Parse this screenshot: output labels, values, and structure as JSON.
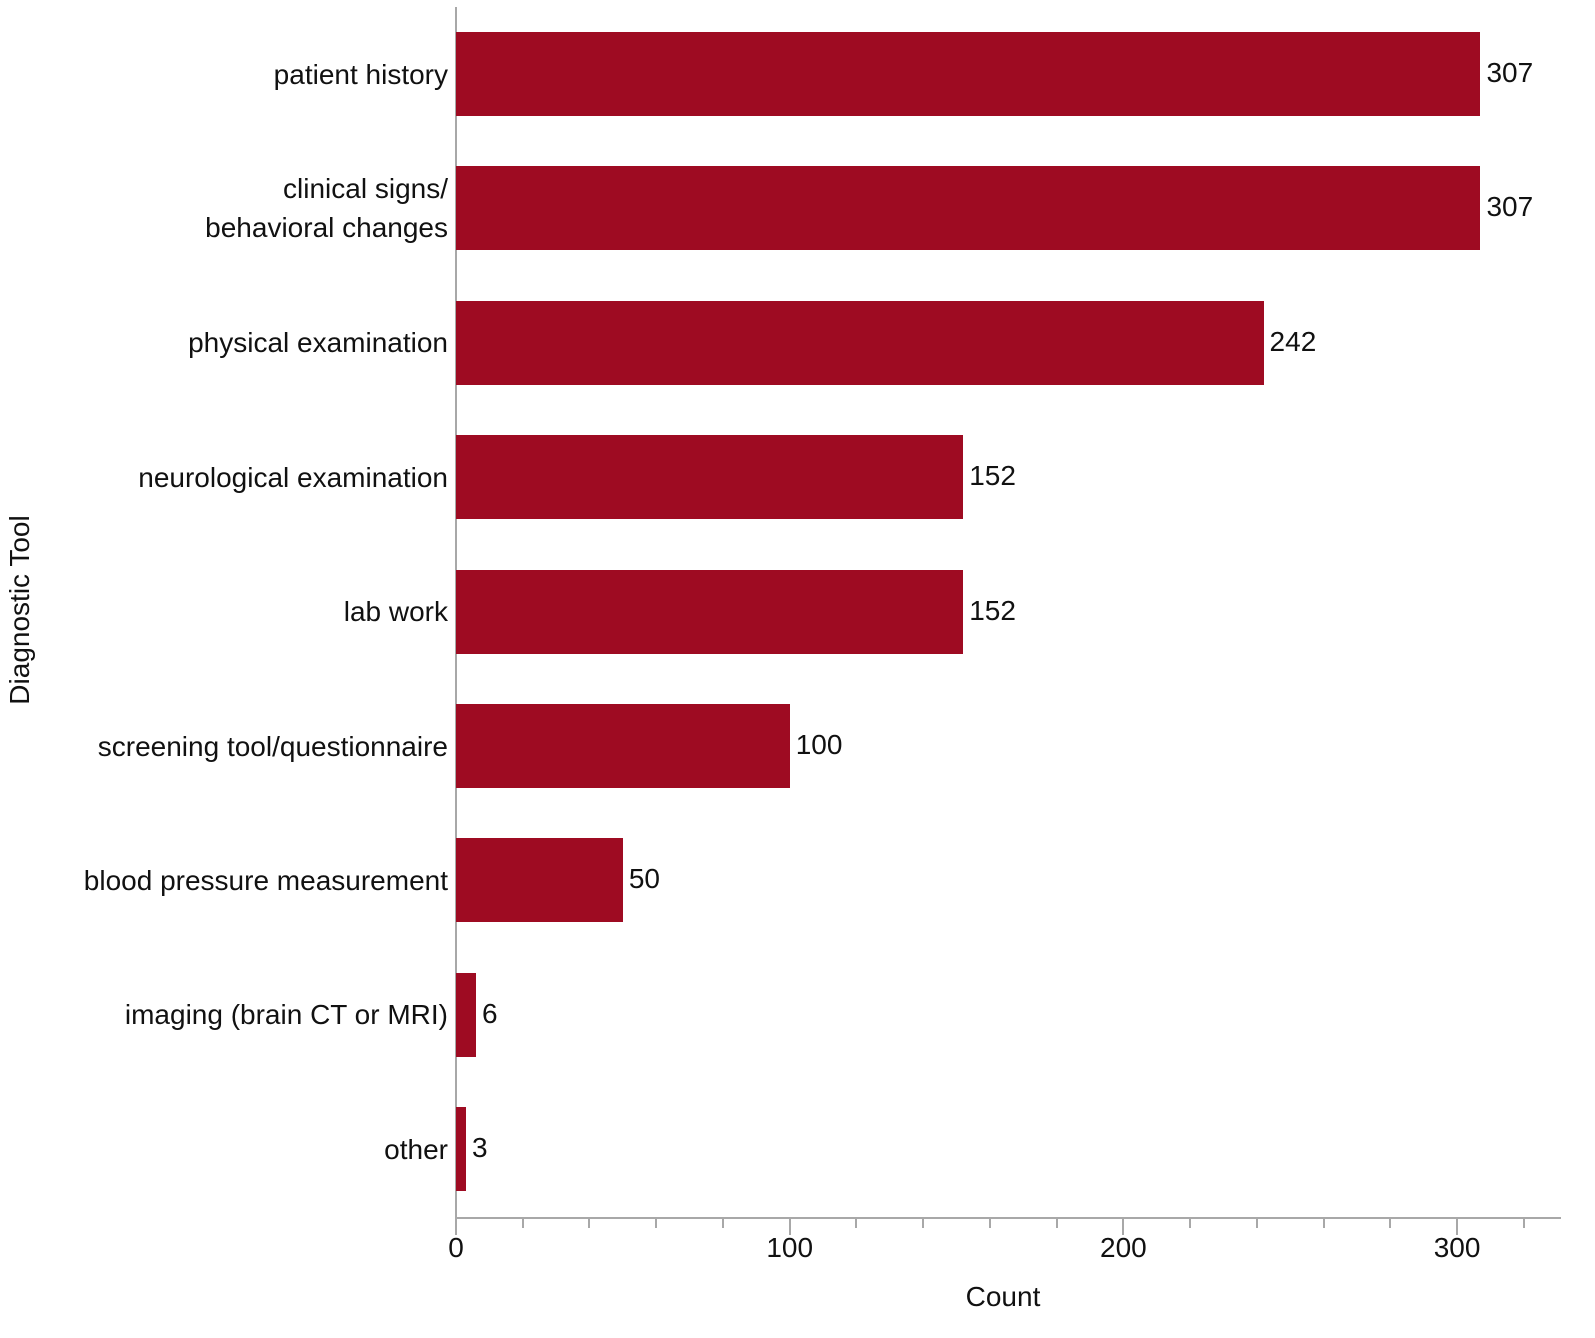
{
  "chart_data": {
    "type": "bar",
    "orientation": "horizontal",
    "title": "",
    "xlabel": "Count",
    "ylabel": "Diagnostic Tool",
    "categories": [
      "patient history",
      "clinical signs/\nbehavioral changes",
      "physical examination",
      "neurological examination",
      "lab work",
      "screening tool/questionnaire",
      "blood pressure measurement",
      "imaging (brain CT or MRI)",
      "other"
    ],
    "values": [
      307,
      307,
      242,
      152,
      152,
      100,
      50,
      6,
      3
    ],
    "data_labels": [
      "307",
      "307",
      "242",
      "152",
      "152",
      "100",
      "50",
      "6",
      "3"
    ],
    "xlim": [
      0,
      330
    ],
    "x_ticks_major": [
      0,
      100,
      200,
      300
    ],
    "x_tick_labels": [
      "0",
      "100",
      "200",
      "300"
    ],
    "x_ticks_minor_step": 20,
    "grid": false,
    "legend": null,
    "bar_color": "#9e0b22"
  },
  "axes": {
    "x_title": "Count",
    "y_title": "Diagnostic Tool"
  }
}
